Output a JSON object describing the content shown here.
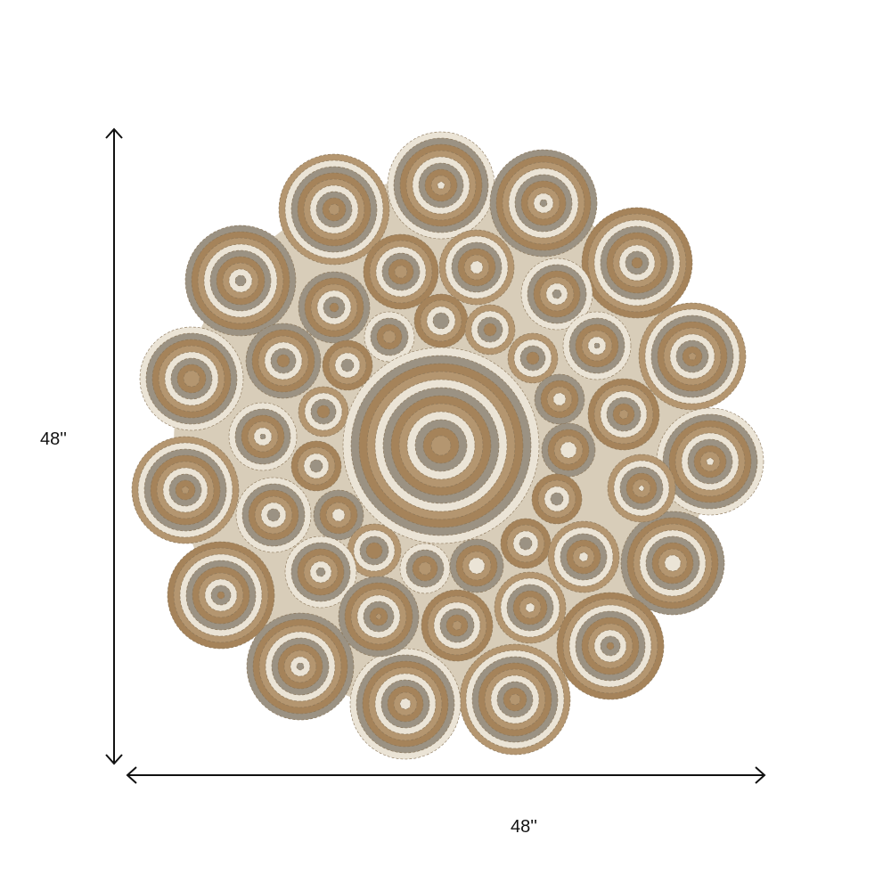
{
  "product": {
    "description_icon": "round-braided-jute-rug-image",
    "colors": {
      "tan": "#b49670",
      "cream": "#ebe4d6",
      "gray": "#9b9283",
      "brown": "#a5835a"
    }
  },
  "dimensions": {
    "height_label": "48''",
    "width_label": "48''"
  }
}
